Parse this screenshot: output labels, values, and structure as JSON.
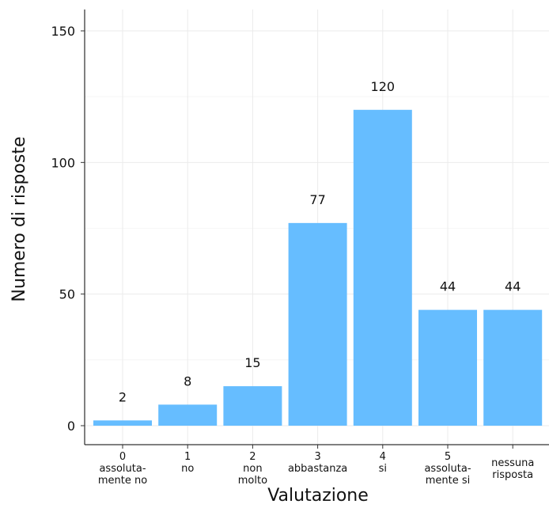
{
  "chart_data": {
    "type": "bar",
    "categories": [
      [
        "0",
        "assoluta-",
        "mente no"
      ],
      [
        "1",
        "no"
      ],
      [
        "2",
        "non",
        "molto"
      ],
      [
        "3",
        "abbastanza"
      ],
      [
        "4",
        "si"
      ],
      [
        "5",
        "assoluta-",
        "mente si"
      ],
      [
        "nessuna",
        "risposta"
      ]
    ],
    "values": [
      2,
      8,
      15,
      77,
      120,
      44,
      44
    ],
    "data_labels": [
      "2",
      "8",
      "15",
      "77",
      "120",
      "44",
      "44"
    ],
    "xlabel": "Valutazione",
    "ylabel": "Numero di risposte",
    "ylim": [
      0,
      158
    ],
    "yticks": [
      0,
      50,
      100,
      150
    ],
    "grid": true,
    "legend": "none",
    "bar_color": "#66bdff"
  }
}
